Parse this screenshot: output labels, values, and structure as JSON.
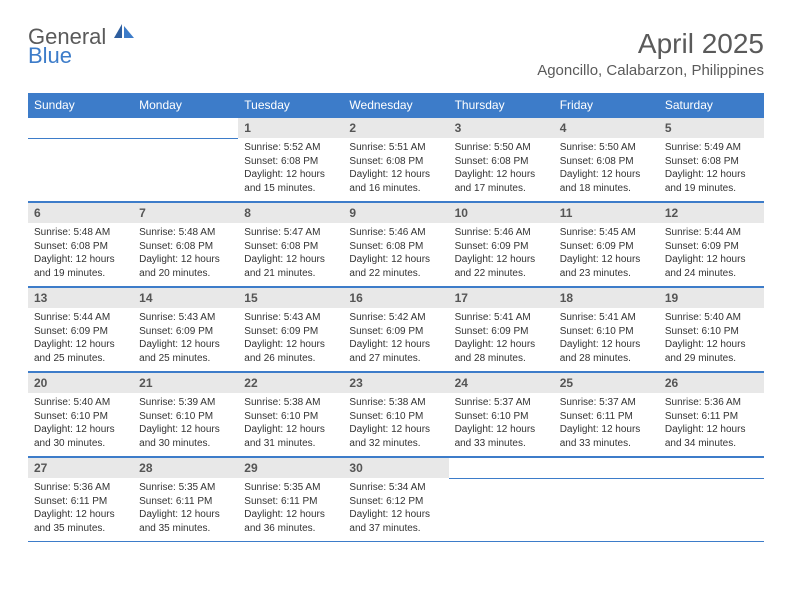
{
  "brand": {
    "part1": "General",
    "part2": "Blue"
  },
  "title": "April 2025",
  "location": "Agoncillo, Calabarzon, Philippines",
  "colors": {
    "header_bg": "#3d7cc9",
    "header_text": "#ffffff",
    "daynum_bg": "#e8e8e8",
    "text": "#333333",
    "muted": "#5a5a5a",
    "rule": "#3d7cc9",
    "page_bg": "#ffffff"
  },
  "day_labels": [
    "Sunday",
    "Monday",
    "Tuesday",
    "Wednesday",
    "Thursday",
    "Friday",
    "Saturday"
  ],
  "weeks": [
    [
      null,
      null,
      {
        "n": "1",
        "sunrise": "5:52 AM",
        "sunset": "6:08 PM",
        "daylight": "12 hours and 15 minutes."
      },
      {
        "n": "2",
        "sunrise": "5:51 AM",
        "sunset": "6:08 PM",
        "daylight": "12 hours and 16 minutes."
      },
      {
        "n": "3",
        "sunrise": "5:50 AM",
        "sunset": "6:08 PM",
        "daylight": "12 hours and 17 minutes."
      },
      {
        "n": "4",
        "sunrise": "5:50 AM",
        "sunset": "6:08 PM",
        "daylight": "12 hours and 18 minutes."
      },
      {
        "n": "5",
        "sunrise": "5:49 AM",
        "sunset": "6:08 PM",
        "daylight": "12 hours and 19 minutes."
      }
    ],
    [
      {
        "n": "6",
        "sunrise": "5:48 AM",
        "sunset": "6:08 PM",
        "daylight": "12 hours and 19 minutes."
      },
      {
        "n": "7",
        "sunrise": "5:48 AM",
        "sunset": "6:08 PM",
        "daylight": "12 hours and 20 minutes."
      },
      {
        "n": "8",
        "sunrise": "5:47 AM",
        "sunset": "6:08 PM",
        "daylight": "12 hours and 21 minutes."
      },
      {
        "n": "9",
        "sunrise": "5:46 AM",
        "sunset": "6:08 PM",
        "daylight": "12 hours and 22 minutes."
      },
      {
        "n": "10",
        "sunrise": "5:46 AM",
        "sunset": "6:09 PM",
        "daylight": "12 hours and 22 minutes."
      },
      {
        "n": "11",
        "sunrise": "5:45 AM",
        "sunset": "6:09 PM",
        "daylight": "12 hours and 23 minutes."
      },
      {
        "n": "12",
        "sunrise": "5:44 AM",
        "sunset": "6:09 PM",
        "daylight": "12 hours and 24 minutes."
      }
    ],
    [
      {
        "n": "13",
        "sunrise": "5:44 AM",
        "sunset": "6:09 PM",
        "daylight": "12 hours and 25 minutes."
      },
      {
        "n": "14",
        "sunrise": "5:43 AM",
        "sunset": "6:09 PM",
        "daylight": "12 hours and 25 minutes."
      },
      {
        "n": "15",
        "sunrise": "5:43 AM",
        "sunset": "6:09 PM",
        "daylight": "12 hours and 26 minutes."
      },
      {
        "n": "16",
        "sunrise": "5:42 AM",
        "sunset": "6:09 PM",
        "daylight": "12 hours and 27 minutes."
      },
      {
        "n": "17",
        "sunrise": "5:41 AM",
        "sunset": "6:09 PM",
        "daylight": "12 hours and 28 minutes."
      },
      {
        "n": "18",
        "sunrise": "5:41 AM",
        "sunset": "6:10 PM",
        "daylight": "12 hours and 28 minutes."
      },
      {
        "n": "19",
        "sunrise": "5:40 AM",
        "sunset": "6:10 PM",
        "daylight": "12 hours and 29 minutes."
      }
    ],
    [
      {
        "n": "20",
        "sunrise": "5:40 AM",
        "sunset": "6:10 PM",
        "daylight": "12 hours and 30 minutes."
      },
      {
        "n": "21",
        "sunrise": "5:39 AM",
        "sunset": "6:10 PM",
        "daylight": "12 hours and 30 minutes."
      },
      {
        "n": "22",
        "sunrise": "5:38 AM",
        "sunset": "6:10 PM",
        "daylight": "12 hours and 31 minutes."
      },
      {
        "n": "23",
        "sunrise": "5:38 AM",
        "sunset": "6:10 PM",
        "daylight": "12 hours and 32 minutes."
      },
      {
        "n": "24",
        "sunrise": "5:37 AM",
        "sunset": "6:10 PM",
        "daylight": "12 hours and 33 minutes."
      },
      {
        "n": "25",
        "sunrise": "5:37 AM",
        "sunset": "6:11 PM",
        "daylight": "12 hours and 33 minutes."
      },
      {
        "n": "26",
        "sunrise": "5:36 AM",
        "sunset": "6:11 PM",
        "daylight": "12 hours and 34 minutes."
      }
    ],
    [
      {
        "n": "27",
        "sunrise": "5:36 AM",
        "sunset": "6:11 PM",
        "daylight": "12 hours and 35 minutes."
      },
      {
        "n": "28",
        "sunrise": "5:35 AM",
        "sunset": "6:11 PM",
        "daylight": "12 hours and 35 minutes."
      },
      {
        "n": "29",
        "sunrise": "5:35 AM",
        "sunset": "6:11 PM",
        "daylight": "12 hours and 36 minutes."
      },
      {
        "n": "30",
        "sunrise": "5:34 AM",
        "sunset": "6:12 PM",
        "daylight": "12 hours and 37 minutes."
      },
      null,
      null,
      null
    ]
  ]
}
